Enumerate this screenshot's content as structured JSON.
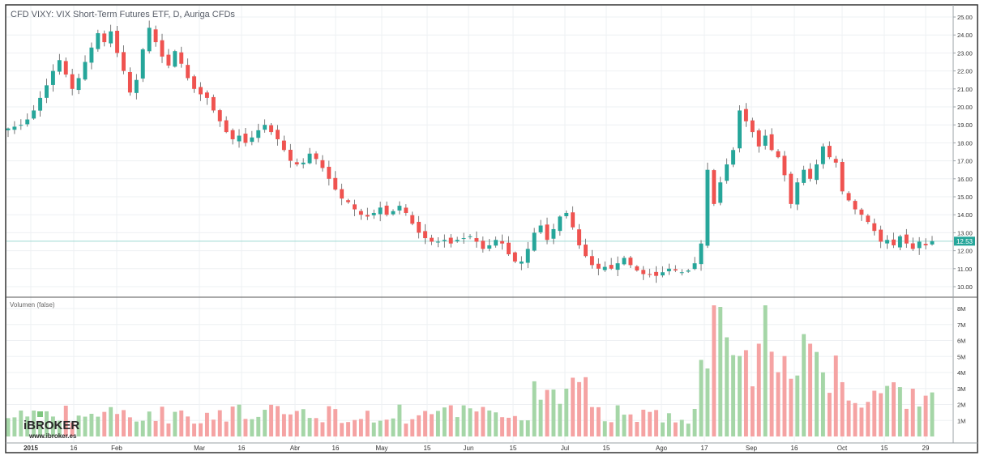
{
  "header": {
    "title": "CFD VIXY: VIX Short-Term Futures ETF, D, Auriga CFDs"
  },
  "volume_panel": {
    "label": "Volumen (false)"
  },
  "price_badge": {
    "value": "12.53"
  },
  "watermark": {
    "logo": "iBROKER",
    "url": "www.ibroker.es"
  },
  "colors": {
    "up": "#26a69a",
    "down": "#ef5350",
    "volume_up": "#a5d6a7",
    "volume_down": "#f5a3a3",
    "badge": "#26a69a",
    "grid": "#eef0f3",
    "frame": "#333333"
  },
  "chart_data": [
    {
      "type": "candlestick",
      "title": "CFD VIXY: VIX Short-Term Futures ETF, D, Auriga CFDs",
      "price_scale": {
        "ylim": [
          9.5,
          25.4
        ],
        "ticks": [
          "25.00",
          "24.00",
          "23.00",
          "22.00",
          "21.00",
          "20.00",
          "19.00",
          "18.00",
          "17.00",
          "16.00",
          "15.00",
          "14.00",
          "13.00",
          "12.00",
          "11.00",
          "10.00"
        ]
      },
      "x_tick_labels": [
        "2015",
        "16",
        "Feb",
        "Mar",
        "16",
        "Abr",
        "16",
        "May",
        "15",
        "Jun",
        "15",
        "Jul",
        "15",
        "Ago",
        "17",
        "Sep",
        "16",
        "Oct",
        "15",
        "29"
      ],
      "last_price": 12.53,
      "series": [
        {
          "name": "VIXY",
          "close_path": [
            18.8,
            18.9,
            19.0,
            19.3,
            19.8,
            20.5,
            21.2,
            22.0,
            22.6,
            21.8,
            21.0,
            21.6,
            22.5,
            23.3,
            24.1,
            23.6,
            24.2,
            23.0,
            22.0,
            20.8,
            21.5,
            23.2,
            24.4,
            23.6,
            22.8,
            22.3,
            23.1,
            22.4,
            21.6,
            21.0,
            20.7,
            20.5,
            19.8,
            19.2,
            18.6,
            18.2,
            18.4,
            18.0,
            18.3,
            18.7,
            19.0,
            18.6,
            18.2,
            17.6,
            17.0,
            16.8,
            16.9,
            17.4,
            17.1,
            16.6,
            16.0,
            15.4,
            14.9,
            14.7,
            14.3,
            14.0,
            13.9,
            14.1,
            14.4,
            14.0,
            14.2,
            14.5,
            14.1,
            13.5,
            13.0,
            12.7,
            12.5,
            12.5,
            12.6,
            12.4,
            12.6,
            12.7,
            12.8,
            12.5,
            12.1,
            12.3,
            12.6,
            12.4,
            11.8,
            11.4,
            11.4,
            12.1,
            13.0,
            13.4,
            12.6,
            13.2,
            13.9,
            14.1,
            13.3,
            12.3,
            11.7,
            11.2,
            11.0,
            11.1,
            11.0,
            11.3,
            11.6,
            11.2,
            10.9,
            10.7,
            10.7,
            10.6,
            10.8,
            11.0,
            10.9,
            10.8,
            10.9,
            11.3,
            12.4,
            16.5,
            14.6,
            15.8,
            16.8,
            17.6,
            19.8,
            19.2,
            18.6,
            17.8,
            18.4,
            17.6,
            17.2,
            16.2,
            14.6,
            15.8,
            16.5,
            16.0,
            16.8,
            17.8,
            17.2,
            16.9,
            15.3,
            14.8,
            14.3,
            14.0,
            13.6,
            13.1,
            12.5,
            12.6,
            12.3,
            12.8,
            12.4,
            12.1,
            12.5,
            12.3,
            12.53
          ]
        },
        {
          "name": "Volumen (false)",
          "unit": "M",
          "ylim": [
            0,
            8.6
          ],
          "ticks": [
            "8M",
            "7M",
            "6M",
            "5M",
            "4M",
            "3M",
            "2M",
            "1M"
          ]
        }
      ]
    }
  ]
}
